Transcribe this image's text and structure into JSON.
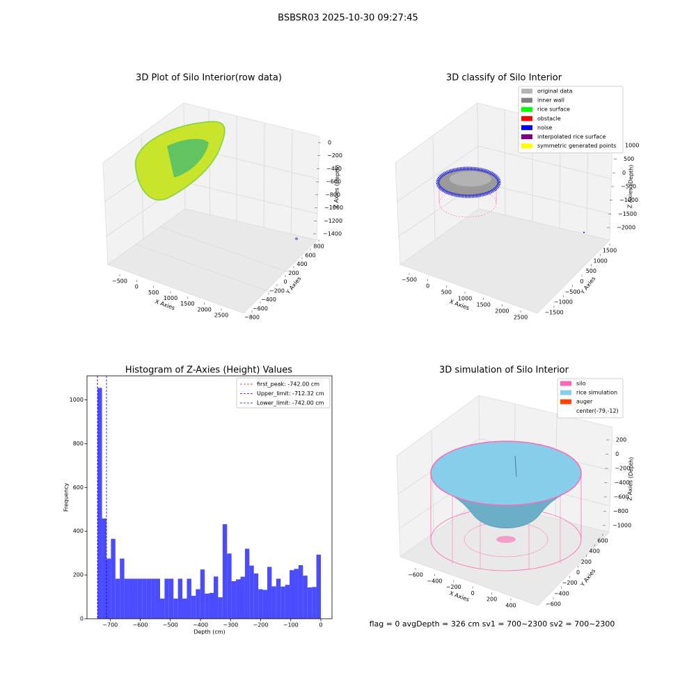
{
  "suptitle": "BSBSR03 2025-10-30 09:27:45",
  "footer": "flag = 0     avgDepth = 326 cm  sv1 = 700~2300  sv2 = 700~2300",
  "chart_data": [
    {
      "type": "scatter3d",
      "title": "3D Plot of Silo Interior(row data)",
      "xlabel": "X Axies",
      "ylabel": "Y Axies",
      "zlabel": "Z Axies (Depth)",
      "xticks": [
        {
          "value": -500,
          "label": "−500"
        },
        0,
        500,
        1000,
        1500,
        2000,
        2500
      ],
      "yticks": [
        {
          "value": -800,
          "label": "−800"
        },
        {
          "value": -600,
          "label": "−600"
        },
        {
          "value": -400,
          "label": "−400"
        },
        {
          "value": -200,
          "label": "−200"
        },
        0,
        200,
        400,
        600,
        800
      ],
      "zticks": [
        0,
        {
          "value": -200,
          "label": "−200"
        },
        {
          "value": -400,
          "label": "−400"
        },
        {
          "value": -600,
          "label": "−600"
        },
        {
          "value": -800,
          "label": "−800"
        },
        {
          "value": -1000,
          "label": "−1000"
        },
        {
          "value": -1200,
          "label": "−1200"
        },
        {
          "value": -1400,
          "label": "−1400"
        }
      ]
    },
    {
      "type": "scatter3d",
      "title": "3D classify of Silo Interior",
      "xlabel": "X Axies",
      "ylabel": "Y Axies",
      "zlabel": "Z Axies (Depth)",
      "xticks": [
        {
          "value": -500,
          "label": "−500"
        },
        0,
        500,
        1000,
        1500,
        2000,
        2500
      ],
      "yticks": [
        {
          "value": -1500,
          "label": "−1500"
        },
        {
          "value": -1000,
          "label": "−1000"
        },
        {
          "value": -500,
          "label": "−500"
        },
        0,
        500,
        1000,
        1500
      ],
      "zticks": [
        1000,
        500,
        0,
        {
          "value": -500,
          "label": "−500"
        },
        {
          "value": -1000,
          "label": "−1000"
        },
        {
          "value": -1500,
          "label": "−1500"
        },
        {
          "value": -2000,
          "label": "−2000"
        }
      ],
      "legend": [
        {
          "name": "original data",
          "color": "#b3b3b3"
        },
        {
          "name": "inner wall",
          "color": "#808080"
        },
        {
          "name": "rice surface",
          "color": "#00ff00"
        },
        {
          "name": "obstacle",
          "color": "#ff0000"
        },
        {
          "name": "noise",
          "color": "#0000ff"
        },
        {
          "name": "interpolated rice surface",
          "color": "#800080"
        },
        {
          "name": "symmetric generated points",
          "color": "#ffff00"
        }
      ]
    },
    {
      "type": "histogram",
      "title": "Histogram of Z-Axies (Height) Values",
      "xlabel": "Depth (cm)",
      "ylabel": "Frequency",
      "color": "#4b4bff",
      "bins": [
        -742,
        -727.16,
        -712.32,
        -697.48,
        -682.64,
        -667.8,
        -652.96,
        -638.12,
        -623.28,
        -608.44,
        -593.6,
        -578.76,
        -563.92,
        -549.08,
        -534.24,
        -519.4,
        -504.56,
        -489.72,
        -474.88,
        -460.04,
        -445.2,
        -430.36,
        -415.52,
        -400.68,
        -385.84,
        -371,
        -356.16,
        -341.32,
        -326.48,
        -311.64,
        -296.8,
        -281.96,
        -267.12,
        -252.28,
        -237.44,
        -222.6,
        -207.76,
        -192.92,
        -178.08,
        -163.24,
        -148.4,
        -133.56,
        -118.72,
        -103.88,
        -89.04,
        -74.2,
        -59.36,
        -44.52,
        -29.68,
        -14.84,
        0
      ],
      "values": [
        1055,
        458,
        275,
        365,
        183,
        275,
        183,
        183,
        183,
        183,
        183,
        183,
        183,
        183,
        92,
        183,
        183,
        92,
        183,
        92,
        183,
        105,
        135,
        225,
        115,
        118,
        193,
        98,
        432,
        298,
        172,
        180,
        192,
        320,
        243,
        207,
        135,
        132,
        237,
        148,
        183,
        147,
        155,
        222,
        228,
        245,
        197,
        143,
        145,
        293
      ],
      "lines": [
        {
          "name": "first_peak: -742.00 cm",
          "x": -742,
          "color": "#ff0000"
        },
        {
          "name": "Upper_limit: -712.32 cm",
          "x": -712.32,
          "color": "#0000ff"
        },
        {
          "name": "Lower_limit: -742.00 cm",
          "x": -742,
          "color": "#0000ff"
        }
      ],
      "xlim": [
        -777,
        37
      ],
      "ylim": [
        0,
        1110
      ],
      "xticks": [
        {
          "value": -700,
          "label": "−700"
        },
        {
          "value": -600,
          "label": "−600"
        },
        {
          "value": -500,
          "label": "−500"
        },
        {
          "value": -400,
          "label": "−400"
        },
        {
          "value": -300,
          "label": "−300"
        },
        {
          "value": -200,
          "label": "−200"
        },
        {
          "value": -100,
          "label": "−100"
        },
        0
      ],
      "yticks": [
        0,
        200,
        400,
        600,
        800,
        1000
      ]
    },
    {
      "type": "surface3d",
      "title": "3D simulation of Silo Interior",
      "xlabel": "X Axies",
      "ylabel": "Y Axies",
      "zlabel": "Z Axies (Depth)",
      "xticks": [
        {
          "value": -600,
          "label": "−600"
        },
        {
          "value": -400,
          "label": "−400"
        },
        {
          "value": -200,
          "label": "−200"
        },
        0,
        200,
        400
      ],
      "yticks": [
        {
          "value": -600,
          "label": "−600"
        },
        {
          "value": -400,
          "label": "−400"
        },
        {
          "value": -200,
          "label": "−200"
        },
        0,
        200,
        400,
        600
      ],
      "zticks": [
        200,
        0,
        {
          "value": -200,
          "label": "−200"
        },
        {
          "value": -400,
          "label": "−400"
        },
        {
          "value": -600,
          "label": "−600"
        },
        {
          "value": -800,
          "label": "−800"
        },
        {
          "value": -1000,
          "label": "−1000"
        }
      ],
      "legend": [
        {
          "name": "silo",
          "color": "#ff69b4"
        },
        {
          "name": "rice simulation",
          "color": "#87ceeb"
        },
        {
          "name": "auger",
          "color": "#ff4500"
        },
        {
          "name": "center(-79,-12)",
          "color": "none"
        }
      ]
    }
  ]
}
